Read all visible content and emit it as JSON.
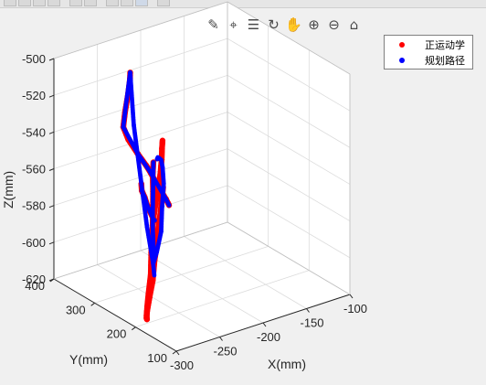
{
  "toolbar": {
    "icons": [
      "brush-icon",
      "data-cursor-icon",
      "data-tips-icon",
      "rotate-3d-icon",
      "pan-icon",
      "zoom-in-icon",
      "zoom-out-icon",
      "home-icon"
    ]
  },
  "legend": {
    "items": [
      {
        "label": "正运动学",
        "color": "#ff0000"
      },
      {
        "label": "规划路径",
        "color": "#0000ff"
      }
    ],
    "placement": "top-right"
  },
  "chart_data": {
    "type": "scatter",
    "projection": "3d",
    "grid": true,
    "xlabel": "X(mm)",
    "ylabel": "Y(mm)",
    "zlabel": "Z(mm)",
    "x_ticks": [
      "-300",
      "-250",
      "-200",
      "-150",
      "-100"
    ],
    "y_ticks": [
      "100",
      "200",
      "300",
      "400"
    ],
    "z_ticks": [
      "-620",
      "-600",
      "-580",
      "-560",
      "-540",
      "-520",
      "-500"
    ],
    "xlim": [
      -300,
      -100
    ],
    "ylim": [
      100,
      400
    ],
    "zlim": [
      -620,
      -500
    ],
    "series": [
      {
        "name": "正运动学",
        "color": "#ff0000",
        "marker": "dot",
        "segments": [
          [
            [
              -261,
              296,
              -500
            ],
            [
              -265,
              288,
              -502
            ],
            [
              -274,
              273,
              -506
            ],
            [
              -289,
              249,
              -511
            ],
            [
              -300,
              230,
              -515
            ],
            [
              -289,
              241,
              -525
            ],
            [
              -270,
              258,
              -538
            ],
            [
              -255,
              270,
              -548
            ],
            [
              -248,
              276,
              -553
            ],
            [
              -234,
              288,
              -564
            ],
            [
              -218,
              300,
              -576
            ],
            [
              -212,
              305,
              -581
            ]
          ],
          [
            [
              -270,
              196,
              -548
            ],
            [
              -276,
              188,
              -556
            ],
            [
              -282,
              180,
              -563
            ],
            [
              -288,
              172,
              -572
            ],
            [
              -294,
              166,
              -580
            ],
            [
              -298,
              162,
              -590
            ],
            [
              -299,
              168,
              -600
            ],
            [
              -297,
              178,
              -609
            ],
            [
              -292,
              190,
              -615
            ],
            [
              -284,
              206,
              -619
            ],
            [
              -275,
              226,
              -621
            ],
            [
              -264,
              248,
              -621
            ],
            [
              -253,
              268,
              -618
            ],
            [
              -241,
              288,
              -612
            ],
            [
              -232,
              306,
              -604
            ],
            [
              -225,
              318,
              -594
            ],
            [
              -224,
              316,
              -585
            ],
            [
              -226,
              306,
              -575
            ],
            [
              -228,
              296,
              -566
            ],
            [
              -230,
              288,
              -559
            ],
            [
              -236,
              272,
              -548
            ],
            [
              -245,
              252,
              -538
            ],
            [
              -251,
              238,
              -531
            ]
          ],
          [
            [
              -221,
              321,
              -590
            ],
            [
              -236,
              293,
              -583
            ],
            [
              -250,
              271,
              -574
            ],
            [
              -263,
              250,
              -566
            ],
            [
              -276,
              228,
              -557
            ],
            [
              -290,
              206,
              -548
            ],
            [
              -298,
              190,
              -541
            ]
          ],
          [
            [
              -262,
              237,
              -541
            ],
            [
              -259,
              245,
              -549
            ],
            [
              -253,
              257,
              -561
            ],
            [
              -246,
              272,
              -573
            ],
            [
              -238,
              290,
              -586
            ],
            [
              -230,
              305,
              -596
            ],
            [
              -224,
              317,
              -606
            ],
            [
              -220,
              325,
              -612
            ]
          ]
        ]
      },
      {
        "name": "规划路径",
        "color": "#0000ff",
        "marker": "dot",
        "segments": [
          [
            [
              -261,
              296,
              -500
            ],
            [
              -289,
              249,
              -511
            ],
            [
              -300,
              230,
              -515
            ],
            [
              -270,
              258,
              -538
            ],
            [
              -248,
              276,
              -553
            ],
            [
              -218,
              300,
              -576
            ],
            [
              -212,
              305,
              -581
            ]
          ],
          [
            [
              -261,
              296,
              -500
            ],
            [
              -255,
              300,
              -530
            ],
            [
              -245,
              305,
              -560
            ],
            [
              -235,
              310,
              -590
            ],
            [
              -226,
              314,
              -612
            ],
            [
              -221,
              322,
              -620
            ]
          ],
          [
            [
              -264,
              222,
              -536
            ],
            [
              -253,
              247,
              -542
            ],
            [
              -241,
              268,
              -546
            ],
            [
              -228,
              290,
              -552
            ],
            [
              -218,
              308,
              -560
            ],
            [
              -212,
              318,
              -571
            ],
            [
              -212,
              322,
              -584
            ],
            [
              -214,
              320,
              -597
            ],
            [
              -220,
              318,
              -607
            ],
            [
              -226,
              314,
              -612
            ]
          ],
          [
            [
              -290,
              206,
              -548
            ],
            [
              -276,
              228,
              -557
            ],
            [
              -263,
              250,
              -566
            ],
            [
              -250,
              271,
              -574
            ],
            [
              -236,
              293,
              -583
            ],
            [
              -221,
              321,
              -590
            ]
          ],
          [
            [
              -262,
              237,
              -541
            ],
            [
              -253,
              257,
              -561
            ],
            [
              -238,
              290,
              -586
            ],
            [
              -224,
              317,
              -606
            ],
            [
              -220,
              325,
              -612
            ]
          ]
        ]
      }
    ]
  }
}
